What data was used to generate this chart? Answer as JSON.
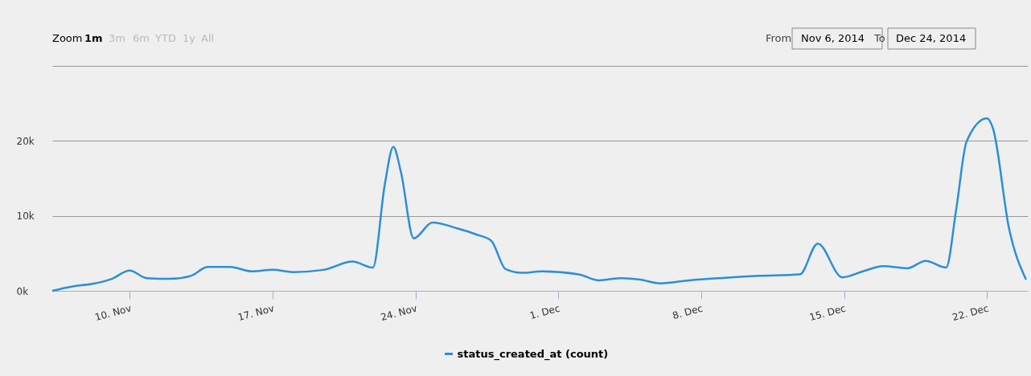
{
  "chart_data": {
    "type": "line",
    "x": [
      "2014-11-06T05:00",
      "2014-11-07T05:00",
      "2014-11-08T03:00",
      "2014-11-09T03:00",
      "2014-11-10T00:00",
      "2014-11-10T20:00",
      "2014-11-12T00:00",
      "2014-11-13T00:00",
      "2014-11-13T20:00",
      "2014-11-14T22:00",
      "2014-11-16T00:00",
      "2014-11-17T00:00",
      "2014-11-18T00:00",
      "2014-11-19T12:00",
      "2014-11-20T22:00",
      "2014-11-21T22:00",
      "2014-11-22T12:00",
      "2014-11-22T22:00",
      "2014-11-23T07:00",
      "2014-11-23T22:00",
      "2014-11-24T20:00",
      "2014-11-26T02:00",
      "2014-11-27T00:00",
      "2014-11-27T17:00",
      "2014-11-28T10:00",
      "2014-11-29T05:00",
      "2014-11-30T05:00",
      "2014-12-02T00:00",
      "2014-12-03T00:00",
      "2014-12-04T02:00",
      "2014-12-05T00:00",
      "2014-12-06T00:00",
      "2014-12-07T10:00",
      "2014-12-08T22:00",
      "2014-12-10T20:00",
      "2014-12-12T20:00",
      "2014-12-13T17:00",
      "2014-12-14T22:00",
      "2014-12-15T22:00",
      "2014-12-16T22:00",
      "2014-12-18T02:00",
      "2014-12-19T00:00",
      "2014-12-20T00:00",
      "2014-12-20T12:00",
      "2014-12-21T00:00",
      "2014-12-22T00:00",
      "2014-12-22T07:00",
      "2014-12-23T02:00",
      "2014-12-23T22:00"
    ],
    "series": [
      {
        "name": "status_created_at (count)",
        "color": "#2b8fd6",
        "values": [
          0,
          600,
          900,
          1600,
          2700,
          1700,
          1600,
          2000,
          3200,
          3200,
          2600,
          2800,
          2500,
          2800,
          3900,
          3100,
          14200,
          19200,
          15800,
          7000,
          9100,
          8300,
          7500,
          6700,
          2900,
          2400,
          2600,
          2200,
          1400,
          1700,
          1500,
          1000,
          1400,
          1700,
          2000,
          2200,
          6300,
          1800,
          2600,
          3300,
          3000,
          4000,
          3100,
          11000,
          19900,
          23000,
          21700,
          8300,
          1500
        ]
      }
    ],
    "xlim": [
      "2014-11-06T05:00",
      "2014-12-24T00:00"
    ],
    "xticks": [
      {
        "value": "2014-11-10",
        "label": "10. Nov"
      },
      {
        "value": "2014-11-17",
        "label": "17. Nov"
      },
      {
        "value": "2014-11-24",
        "label": "24. Nov"
      },
      {
        "value": "2014-12-01",
        "label": "1. Dec"
      },
      {
        "value": "2014-12-08",
        "label": "8. Dec"
      },
      {
        "value": "2014-12-15",
        "label": "15. Dec"
      },
      {
        "value": "2014-12-22",
        "label": "22. Dec"
      }
    ],
    "ylim": [
      0,
      30000
    ],
    "yticks": [
      {
        "value": 0,
        "label": "0k"
      },
      {
        "value": 10000,
        "label": "10k"
      },
      {
        "value": 20000,
        "label": "20k"
      },
      {
        "value": 30000,
        "label": null
      }
    ],
    "grid": "y",
    "legend": "bottom",
    "marker": "none",
    "line_style": "solid",
    "annotations": [
      "Zoom",
      "1m",
      "3m",
      "6m",
      "YTD",
      "1y",
      "All",
      "From",
      "Nov 6, 2014",
      "To",
      "Dec 24, 2014"
    ]
  }
}
